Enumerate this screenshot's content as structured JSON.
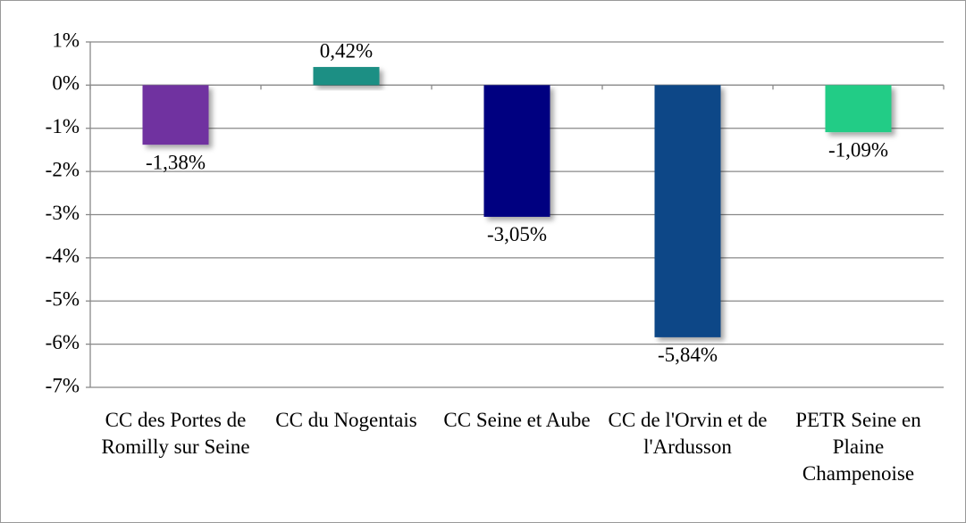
{
  "chart_data": {
    "type": "bar",
    "categories": [
      "CC des Portes de Romilly sur Seine",
      "CC du Nogentais",
      "CC Seine et Aube",
      "CC de l'Orvin et de l'Ardusson",
      "PETR Seine en Plaine Champenoise"
    ],
    "values": [
      -1.38,
      0.42,
      -3.05,
      -5.84,
      -1.09
    ],
    "value_labels": [
      "-1,38%",
      "0,42%",
      "-3,05%",
      "-5,84%",
      "-1,09%"
    ],
    "colors": [
      "#7030a0",
      "#1b8f84",
      "#000080",
      "#0b4787",
      "#20cc86"
    ],
    "ylim": [
      -7,
      1
    ],
    "yticks": [
      {
        "value": 1,
        "label": "1%"
      },
      {
        "value": 0,
        "label": "0%"
      },
      {
        "value": -1,
        "label": "-1%"
      },
      {
        "value": -2,
        "label": "-2%"
      },
      {
        "value": -3,
        "label": "-3%"
      },
      {
        "value": -4,
        "label": "-4%"
      },
      {
        "value": -5,
        "label": "-5%"
      },
      {
        "value": -6,
        "label": "-6%"
      },
      {
        "value": -7,
        "label": "-7%"
      }
    ],
    "grid": true
  }
}
